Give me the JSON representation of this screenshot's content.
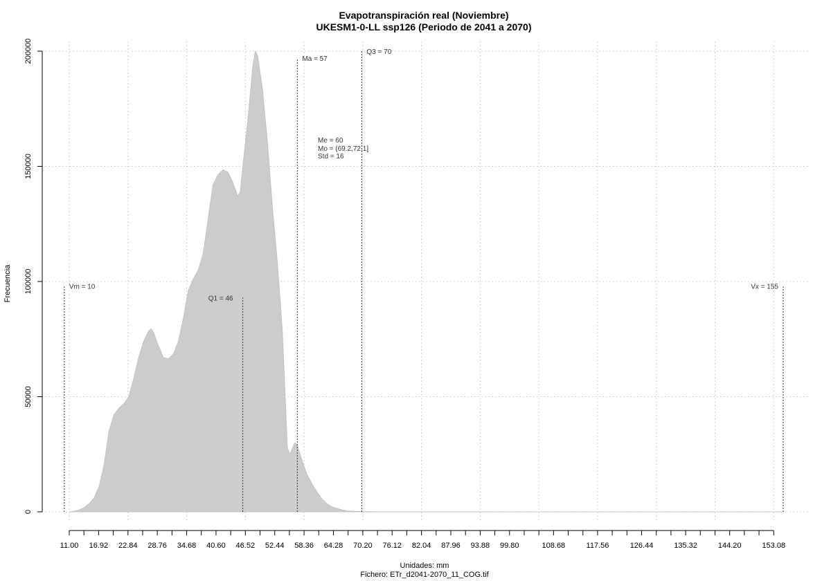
{
  "chart_data": {
    "type": "area",
    "title": "Evapotranspiración real (Noviembre)",
    "subtitle": "UKESM1-0-LL ssp126 (Periodo de 2041 a 2070)",
    "xlabel": "Unidades: mm",
    "caption": "Fichero: ETr_d2041-2070_11_COG.tif",
    "ylabel": "Frecuencia",
    "xlim": [
      11,
      155
    ],
    "ylim": [
      0,
      200000
    ],
    "grid": true,
    "fill_color": "#cccccc",
    "y_ticks": [
      {
        "value": 0,
        "label": "0"
      },
      {
        "value": 50000,
        "label": "50000"
      },
      {
        "value": 100000,
        "label": "100000"
      },
      {
        "value": 150000,
        "label": "150000"
      },
      {
        "value": 200000,
        "label": "200000"
      }
    ],
    "x_tick_labels": [
      {
        "value": 11.0,
        "label": "11.00"
      },
      {
        "value": 16.92,
        "label": "16.92"
      },
      {
        "value": 22.84,
        "label": "22.84"
      },
      {
        "value": 28.76,
        "label": "28.76"
      },
      {
        "value": 34.68,
        "label": "34.68"
      },
      {
        "value": 40.6,
        "label": "40.60"
      },
      {
        "value": 46.52,
        "label": "46.52"
      },
      {
        "value": 52.44,
        "label": "52.44"
      },
      {
        "value": 58.36,
        "label": "58.36"
      },
      {
        "value": 64.28,
        "label": "64.28"
      },
      {
        "value": 70.2,
        "label": "70.20"
      },
      {
        "value": 76.12,
        "label": "76.12"
      },
      {
        "value": 82.04,
        "label": "82.04"
      },
      {
        "value": 87.96,
        "label": "87.96"
      },
      {
        "value": 93.88,
        "label": "93.88"
      },
      {
        "value": 99.8,
        "label": "99.80"
      },
      {
        "value": 108.68,
        "label": "108.68"
      },
      {
        "value": 117.56,
        "label": "117.56"
      },
      {
        "value": 126.44,
        "label": "126.44"
      },
      {
        "value": 135.32,
        "label": "135.32"
      },
      {
        "value": 144.2,
        "label": "144.20"
      },
      {
        "value": 153.08,
        "label": "153.08"
      }
    ],
    "x_minor_ticks": [
      11.0,
      13.96,
      16.92,
      19.88,
      22.84,
      25.8,
      28.76,
      31.72,
      34.68,
      37.64,
      40.6,
      43.56,
      46.52,
      49.48,
      52.44,
      55.4,
      58.36,
      61.32,
      64.28,
      67.24,
      70.2,
      73.16,
      76.12,
      79.08,
      82.04,
      85.0,
      87.96,
      90.92,
      93.88,
      96.84,
      99.8,
      102.76,
      105.72,
      108.68,
      111.64,
      114.6,
      117.56,
      120.52,
      123.48,
      126.44,
      129.4,
      132.36,
      135.32,
      138.28,
      141.24,
      144.2,
      147.16,
      150.12,
      153.08
    ],
    "x_grid": [
      11.0,
      22.84,
      34.68,
      46.52,
      58.36,
      70.2,
      82.04,
      93.88,
      105.72,
      117.56,
      129.4,
      141.24,
      153.08
    ],
    "density": [
      [
        11,
        0
      ],
      [
        12,
        300
      ],
      [
        13,
        800
      ],
      [
        14,
        1800
      ],
      [
        15,
        3500
      ],
      [
        16,
        6000
      ],
      [
        17,
        11000
      ],
      [
        18,
        20000
      ],
      [
        19,
        35000
      ],
      [
        20,
        42000
      ],
      [
        21,
        45000
      ],
      [
        22,
        47000
      ],
      [
        23,
        50000
      ],
      [
        24,
        58000
      ],
      [
        25,
        67000
      ],
      [
        26,
        74000
      ],
      [
        27,
        78500
      ],
      [
        27.5,
        79500
      ],
      [
        28,
        78000
      ],
      [
        29,
        72000
      ],
      [
        30,
        67000
      ],
      [
        31,
        66500
      ],
      [
        32,
        68500
      ],
      [
        33,
        74000
      ],
      [
        34,
        84000
      ],
      [
        35,
        96000
      ],
      [
        36,
        101000
      ],
      [
        37,
        105000
      ],
      [
        38,
        112000
      ],
      [
        39,
        127000
      ],
      [
        40,
        142000
      ],
      [
        41,
        146500
      ],
      [
        42,
        148500
      ],
      [
        43,
        147500
      ],
      [
        44,
        143000
      ],
      [
        45,
        137000
      ],
      [
        45.5,
        139000
      ],
      [
        46,
        150000
      ],
      [
        47,
        170000
      ],
      [
        48,
        193000
      ],
      [
        48.5,
        200000
      ],
      [
        49,
        198000
      ],
      [
        50,
        183000
      ],
      [
        51,
        160000
      ],
      [
        52,
        132000
      ],
      [
        53,
        108000
      ],
      [
        54,
        78000
      ],
      [
        55,
        28000
      ],
      [
        55.5,
        25000
      ],
      [
        56,
        27500
      ],
      [
        56.5,
        30000
      ],
      [
        57,
        29000
      ],
      [
        58,
        22000
      ],
      [
        59,
        16000
      ],
      [
        60,
        12000
      ],
      [
        61,
        8500
      ],
      [
        62,
        5500
      ],
      [
        63,
        3500
      ],
      [
        64,
        2200
      ],
      [
        65,
        1500
      ],
      [
        66,
        900
      ],
      [
        67,
        400
      ],
      [
        69,
        200
      ],
      [
        71,
        80
      ],
      [
        75,
        40
      ],
      [
        85,
        20
      ],
      [
        100,
        10
      ],
      [
        155,
        0
      ]
    ],
    "stat_lines": [
      {
        "x": 10,
        "height": 98000,
        "label": "Vm = 10"
      },
      {
        "x": 46,
        "height": 93000,
        "label": "Q1 = 46"
      },
      {
        "x": 57,
        "height": 197000,
        "label": "Ma = 57"
      },
      {
        "x": 70,
        "height": 200000,
        "label": "Q3 = 70"
      },
      {
        "x": 155,
        "height": 98000,
        "label": "Vx = 155"
      }
    ],
    "stats_text": [
      "Me = 60",
      "Mo = (69.2,72.1]",
      "Std = 16"
    ]
  }
}
